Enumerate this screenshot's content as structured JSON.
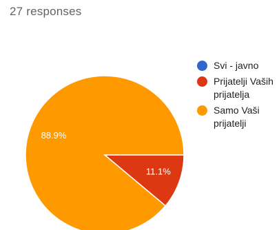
{
  "header": {
    "responses_text": "27 responses"
  },
  "chart_data": {
    "type": "pie",
    "total_responses": 27,
    "categories": [
      "Svi - javno",
      "Prijatelji Vaših prijatelja",
      "Samo Vaši prijatelji"
    ],
    "values": [
      0,
      11.1,
      88.9
    ],
    "colors": [
      "#3366cc",
      "#dc3912",
      "#ff9900"
    ],
    "data_labels": [
      "",
      "11.1%",
      "88.9%"
    ],
    "legend_position": "right"
  },
  "legend": {
    "items": [
      {
        "label": "Svi - javno",
        "color": "#3366cc"
      },
      {
        "label": "Prijatelji Vaših prijatelja",
        "color": "#dc3912"
      },
      {
        "label": "Samo Vaši prijatelji",
        "color": "#ff9900"
      }
    ]
  }
}
